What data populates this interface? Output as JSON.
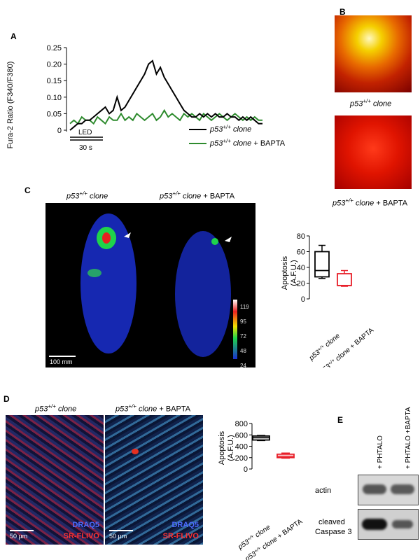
{
  "panels": {
    "A": {
      "label": "A",
      "ylabel": "Fura-2 Ratio (F340/F380)",
      "yticks": [
        "0.25",
        "0.20",
        "0.15",
        "0.10",
        "0.05",
        "0"
      ],
      "led_label": "LED",
      "time_label": "30 s",
      "legend": [
        {
          "genotype": "p53+/+",
          "suffix": "clone",
          "color": "#000000"
        },
        {
          "genotype": "p53+/+",
          "suffix": "clone + BAPTA",
          "color": "#2e8b2e"
        }
      ]
    },
    "B": {
      "label": "B",
      "caption_top": "p53+/+  clone",
      "caption_bottom": "p53+/+  clone + BAPTA"
    },
    "C": {
      "label": "C",
      "title_left": "p53+/+  clone",
      "title_right_italic": "p53+/+  clone",
      "title_right_plain": " + BAPTA",
      "scale_label": "100 mm",
      "colorbar_ticks": [
        "119",
        "95",
        "72",
        "48",
        "24"
      ],
      "box_ylabel_1": "Apoptosis",
      "box_ylabel_2": "(A.F.U.)",
      "box_yticks": [
        "80",
        "60",
        "40",
        "20",
        "0"
      ],
      "box_xlabels": [
        "p53+/+ clone",
        "p53+/+ clone + BAPTA"
      ]
    },
    "D": {
      "label": "D",
      "title_left": "p53+/+  clone",
      "title_right_italic": "p53+/+  clone",
      "title_right_plain": " + BAPTA",
      "stain_1": "DRAQ5",
      "stain_2": "SR-FLIVO",
      "scale_label": "50 µm",
      "box_ylabel_1": "Apoptosis",
      "box_ylabel_2": "(A.F.U.)",
      "box_yticks": [
        "800",
        "600",
        "400",
        "200",
        "0"
      ],
      "box_xlabels": [
        "p53+/+ clone",
        "p53+/+ clone + BAPTA"
      ]
    },
    "E": {
      "label": "E",
      "lane_labels": [
        "+ PHTALO",
        "+ PHTALO +BAPTA"
      ],
      "band_labels": [
        "actin",
        "cleaved",
        "Caspase 3"
      ]
    }
  },
  "chart_data": [
    {
      "type": "line",
      "panel": "A",
      "ylabel": "Fura-2 Ratio (F340/F380)",
      "ylim": [
        0,
        0.25
      ],
      "xlabel": "",
      "series": [
        {
          "name": "p53+/+ clone",
          "values": [
            0.0,
            0.01,
            0.02,
            0.02,
            0.03,
            0.03,
            0.04,
            0.05,
            0.06,
            0.07,
            0.05,
            0.06,
            0.1,
            0.06,
            0.07,
            0.09,
            0.11,
            0.13,
            0.15,
            0.17,
            0.2,
            0.21,
            0.17,
            0.19,
            0.16,
            0.14,
            0.12,
            0.1,
            0.08,
            0.06,
            0.05,
            0.04,
            0.04,
            0.05,
            0.04,
            0.05,
            0.04,
            0.05,
            0.04,
            0.04,
            0.05,
            0.04,
            0.04,
            0.03,
            0.04,
            0.03,
            0.04,
            0.03,
            0.02,
            0.02
          ]
        },
        {
          "name": "p53+/+ clone + BAPTA",
          "values": [
            0.02,
            0.03,
            0.02,
            0.04,
            0.03,
            0.03,
            0.02,
            0.04,
            0.03,
            0.02,
            0.04,
            0.03,
            0.03,
            0.05,
            0.03,
            0.04,
            0.03,
            0.05,
            0.04,
            0.03,
            0.04,
            0.05,
            0.03,
            0.04,
            0.06,
            0.04,
            0.05,
            0.04,
            0.03,
            0.05,
            0.04,
            0.05,
            0.04,
            0.03,
            0.05,
            0.04,
            0.03,
            0.04,
            0.05,
            0.04,
            0.03,
            0.04,
            0.05,
            0.04,
            0.03,
            0.04,
            0.03,
            0.04,
            0.03,
            0.03
          ]
        }
      ]
    },
    {
      "type": "box",
      "panel": "C",
      "ylabel": "Apoptosis (A.F.U.)",
      "ylim": [
        0,
        80
      ],
      "categories": [
        "p53+/+ clone",
        "p53+/+ clone + BAPTA"
      ],
      "boxes": [
        {
          "min": 26,
          "q1": 28,
          "median": 36,
          "q3": 60,
          "max": 68,
          "color": "#000000"
        },
        {
          "min": 16,
          "q1": 17,
          "median": 17,
          "q3": 32,
          "max": 36,
          "color": "#e8202a"
        }
      ]
    },
    {
      "type": "box",
      "panel": "D",
      "ylabel": "Apoptosis (A.F.U.)",
      "ylim": [
        0,
        800
      ],
      "categories": [
        "p53+/+ clone",
        "p53+/+ clone + BAPTA"
      ],
      "boxes": [
        {
          "min": 500,
          "q1": 510,
          "median": 550,
          "q3": 580,
          "max": 590,
          "color": "#000000"
        },
        {
          "min": 190,
          "q1": 200,
          "median": 225,
          "q3": 260,
          "max": 280,
          "color": "#e8202a"
        }
      ]
    }
  ]
}
